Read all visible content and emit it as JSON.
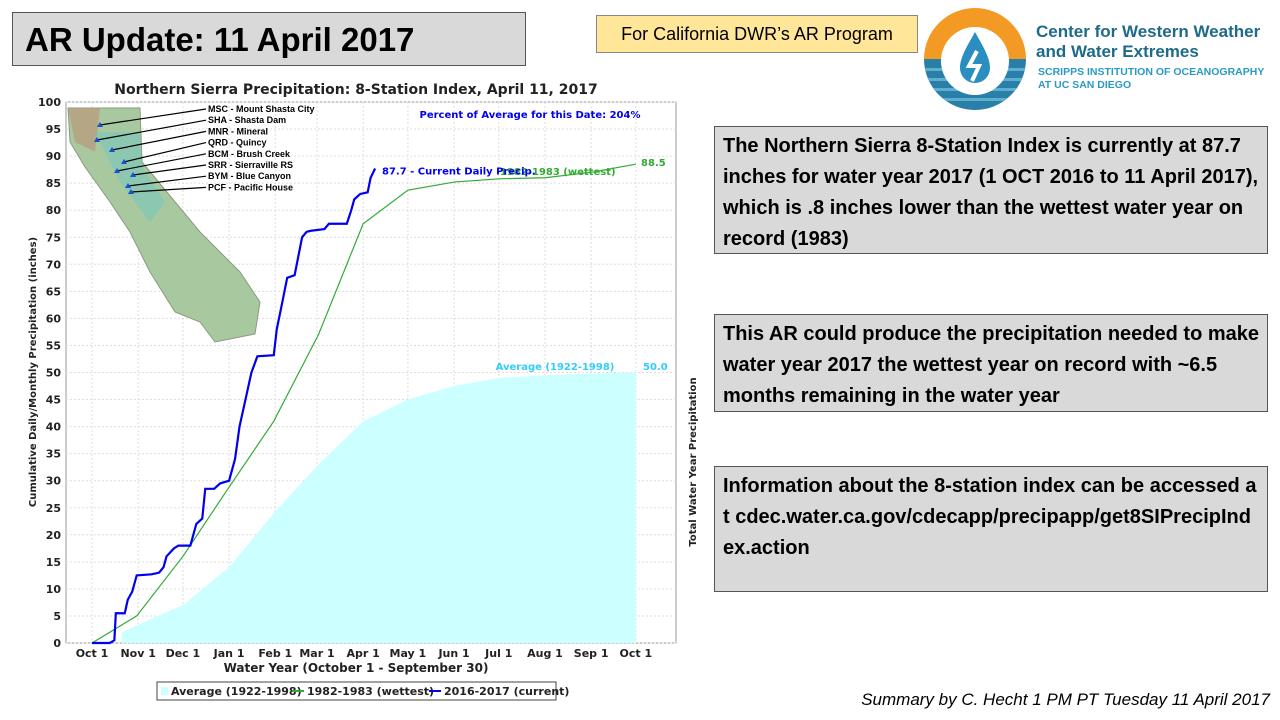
{
  "header": {
    "title": "AR Update: 11 April 2017",
    "program_label": "For California DWR’s AR Program"
  },
  "logo": {
    "line1": "Center for Western Weather",
    "line2": "and Water Extremes",
    "line3": "SCRIPPS INSTITUTION OF OCEANOGRAPHY",
    "line4": "AT UC SAN DIEGO"
  },
  "boxes": [
    "The Northern Sierra 8-Station Index is currently at 87.7 inches for water year 2017 (1 OCT 2016 to 11 April 2017), which is .8 inches lower than the wettest water year on record (1983)",
    "This AR could produce the precipitation needed to make water year 2017 the wettest year on record with ~6.5 months remaining in the water year",
    "Information about the 8-station index can be accessed at cdec.water.ca.gov/cdecapp/precipapp/get8SIPrecipIndex.action"
  ],
  "summary": "Summary by C. Hecht 1 PM PT Tuesday 11 April 2017",
  "stations": [
    "MSC - Mount Shasta City",
    "SHA - Shasta Dam",
    "MNR - Mineral",
    "QRD - Quincy",
    "BCM - Brush Creek",
    "SRR - Sierraville RS",
    "BYM - Blue Canyon",
    "PCF - Pacific House"
  ],
  "chart_data": {
    "type": "line",
    "title": "Northern Sierra Precipitation: 8-Station Index, April 11, 2017",
    "xlabel": "Water Year (October 1 - September 30)",
    "ylabel": "Cumulative Daily/Monthly Precipitation (inches)",
    "ylabel_right": "Total Water Year Precipitation",
    "ylim": [
      0,
      100
    ],
    "xlim_days": [
      -17,
      395
    ],
    "yticks": [
      0,
      5,
      10,
      15,
      20,
      25,
      30,
      35,
      40,
      45,
      50,
      55,
      60,
      65,
      70,
      75,
      80,
      85,
      90,
      95,
      100
    ],
    "xticks": [
      {
        "label": "Oct 1",
        "day": 0
      },
      {
        "label": "Nov 1",
        "day": 31
      },
      {
        "label": "Dec 1",
        "day": 61
      },
      {
        "label": "Jan 1",
        "day": 92
      },
      {
        "label": "Feb 1",
        "day": 123
      },
      {
        "label": "Mar 1",
        "day": 151
      },
      {
        "label": "Apr 1",
        "day": 182
      },
      {
        "label": "May 1",
        "day": 212
      },
      {
        "label": "Jun 1",
        "day": 243
      },
      {
        "label": "Jul 1",
        "day": 273
      },
      {
        "label": "Aug 1",
        "day": 304
      },
      {
        "label": "Sep 1",
        "day": 335
      },
      {
        "label": "Oct 1",
        "day": 365
      }
    ],
    "annotation_percent": "Percent of Average for this Date: 204%",
    "series": [
      {
        "name": "Average (1922-1998)",
        "type": "area",
        "color": "#ccffff",
        "label": "Average (1922-1998)",
        "end_label": "50.0",
        "label_color": "#33ccff",
        "points": [
          [
            20,
            2
          ],
          [
            40,
            4.5
          ],
          [
            61,
            7
          ],
          [
            92,
            14
          ],
          [
            122,
            24
          ],
          [
            152,
            33
          ],
          [
            182,
            41
          ],
          [
            212,
            45
          ],
          [
            243,
            47.5
          ],
          [
            273,
            49
          ],
          [
            304,
            49.5
          ],
          [
            335,
            49.8
          ],
          [
            365,
            50
          ]
        ]
      },
      {
        "name": "1982-1983 (wettest)",
        "type": "line",
        "color": "#33aa33",
        "label": "1982-1983 (wettest)",
        "end_label": "88.5",
        "points": [
          [
            0,
            0
          ],
          [
            30,
            5
          ],
          [
            61,
            16
          ],
          [
            90,
            28
          ],
          [
            122,
            41
          ],
          [
            152,
            57
          ],
          [
            182,
            77.5
          ],
          [
            212,
            83.7
          ],
          [
            243,
            85.2
          ],
          [
            273,
            85.8
          ],
          [
            304,
            86
          ],
          [
            335,
            87
          ],
          [
            365,
            88.5
          ]
        ]
      },
      {
        "name": "2016-2017 (current)",
        "type": "line",
        "color": "#0000ee",
        "label": "87.7 -  Current Daily Precip.",
        "points": [
          [
            0,
            0
          ],
          [
            12,
            0
          ],
          [
            15,
            0.5
          ],
          [
            16,
            5.5
          ],
          [
            22,
            5.5
          ],
          [
            24,
            8
          ],
          [
            27,
            9.5
          ],
          [
            30,
            12.5
          ],
          [
            40,
            12.7
          ],
          [
            45,
            13
          ],
          [
            48,
            14
          ],
          [
            50,
            16
          ],
          [
            55,
            17.5
          ],
          [
            58,
            18
          ],
          [
            66,
            18
          ],
          [
            70,
            22
          ],
          [
            74,
            23
          ],
          [
            76,
            28.5
          ],
          [
            82,
            28.5
          ],
          [
            86,
            29.5
          ],
          [
            92,
            30
          ],
          [
            96,
            34
          ],
          [
            99,
            40
          ],
          [
            103,
            45
          ],
          [
            107,
            50
          ],
          [
            111,
            53
          ],
          [
            122,
            53.2
          ],
          [
            124,
            58
          ],
          [
            127,
            62
          ],
          [
            131,
            67.5
          ],
          [
            136,
            68
          ],
          [
            141,
            75
          ],
          [
            144,
            76
          ],
          [
            147,
            76.2
          ],
          [
            156,
            76.5
          ],
          [
            159,
            77.5
          ],
          [
            171,
            77.5
          ],
          [
            174,
            80
          ],
          [
            176,
            82
          ],
          [
            180,
            83
          ],
          [
            185,
            83.3
          ],
          [
            187,
            86
          ],
          [
            190,
            87.7
          ]
        ]
      }
    ]
  }
}
